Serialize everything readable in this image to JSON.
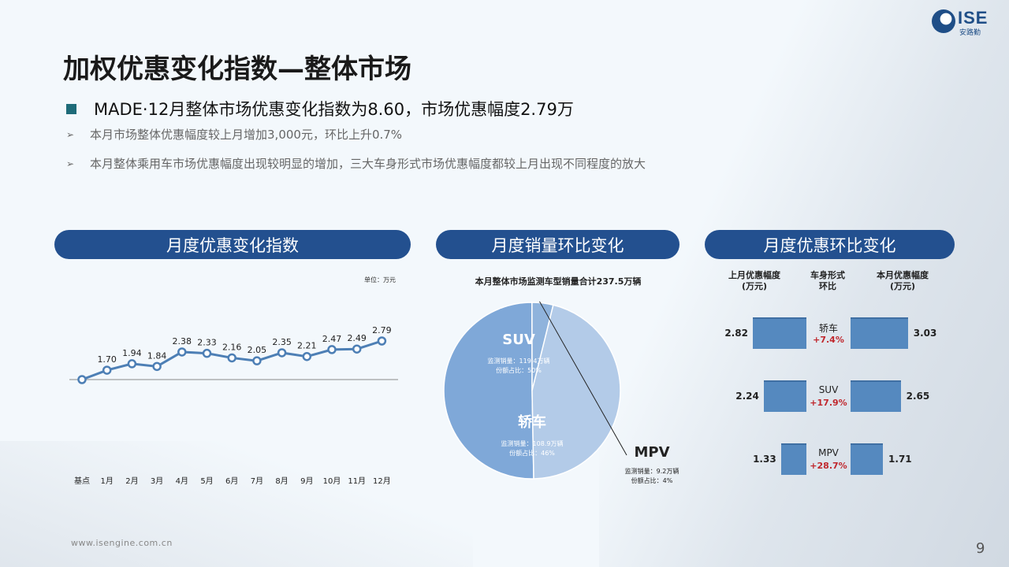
{
  "logo": {
    "text": "ISE",
    "sub": "安路勤"
  },
  "title": "加权优惠变化指数—整体市场",
  "headline": "MADE·12月整体市场优惠变化指数为8.60，市场优惠幅度2.79万",
  "bullets": [
    "本月市场整体优惠幅度较上月增加3,000元，环比上升0.7%",
    "本月整体乘用车市场优惠幅度出现较明显的增加，三大车身形式市场优惠幅度都较上月出现不同程度的放大"
  ],
  "sections": {
    "index": "月度优惠变化指数",
    "sales": "月度销量环比变化",
    "discount": "月度优惠环比变化"
  },
  "chart_data": [
    {
      "type": "line",
      "unit_label": "单位：万元",
      "categories": [
        "基点",
        "1月",
        "2月",
        "3月",
        "4月",
        "5月",
        "6月",
        "7月",
        "8月",
        "9月",
        "10月",
        "11月",
        "12月"
      ],
      "values": [
        null,
        1.7,
        1.94,
        1.84,
        2.38,
        2.33,
        2.16,
        2.05,
        2.35,
        2.21,
        2.47,
        2.49,
        2.79
      ],
      "plot_values": [
        1.35,
        1.7,
        1.94,
        1.84,
        2.38,
        2.33,
        2.16,
        2.05,
        2.35,
        2.21,
        2.47,
        2.49,
        2.79
      ],
      "labels": [
        "",
        "1.70",
        "1.94",
        "1.84",
        "2.38",
        "2.33",
        "2.16",
        "2.05",
        "2.35",
        "2.21",
        "2.47",
        "2.49",
        "2.79"
      ],
      "color": "#4d7fb5"
    },
    {
      "type": "pie",
      "title": "本月整体市场监测车型销量合计237.5万辆",
      "slices": [
        {
          "name": "SUV",
          "value": 119.4,
          "detail1": "监测销量：119.4万辆",
          "detail2": "份额占比：50%",
          "color": "#7fa8d8"
        },
        {
          "name": "MPV",
          "value": 9.2,
          "detail1": "监测销量：9.2万辆",
          "detail2": "份额占比：4%",
          "color": "#8fb3dc"
        },
        {
          "name": "轿车",
          "value": 108.9,
          "detail1": "监测销量：108.9万辆",
          "detail2": "份额占比：46%",
          "color": "#b3cbe8"
        }
      ]
    },
    {
      "type": "bar",
      "headers": {
        "left": "上月优惠幅度\n(万元)",
        "mid": "车身形式\n环比",
        "right": "本月优惠幅度\n(万元)"
      },
      "rows": [
        {
          "category": "轿车",
          "prev": 2.82,
          "prev_label": "2.82",
          "curr": 3.03,
          "curr_label": "3.03",
          "change": "+7.4%"
        },
        {
          "category": "SUV",
          "prev": 2.24,
          "prev_label": "2.24",
          "curr": 2.65,
          "curr_label": "2.65",
          "change": "+17.9%"
        },
        {
          "category": "MPV",
          "prev": 1.33,
          "prev_label": "1.33",
          "curr": 1.71,
          "curr_label": "1.71",
          "change": "+28.7%"
        }
      ]
    }
  ],
  "footer": "www.isengine.com.cn",
  "page_number": "9"
}
